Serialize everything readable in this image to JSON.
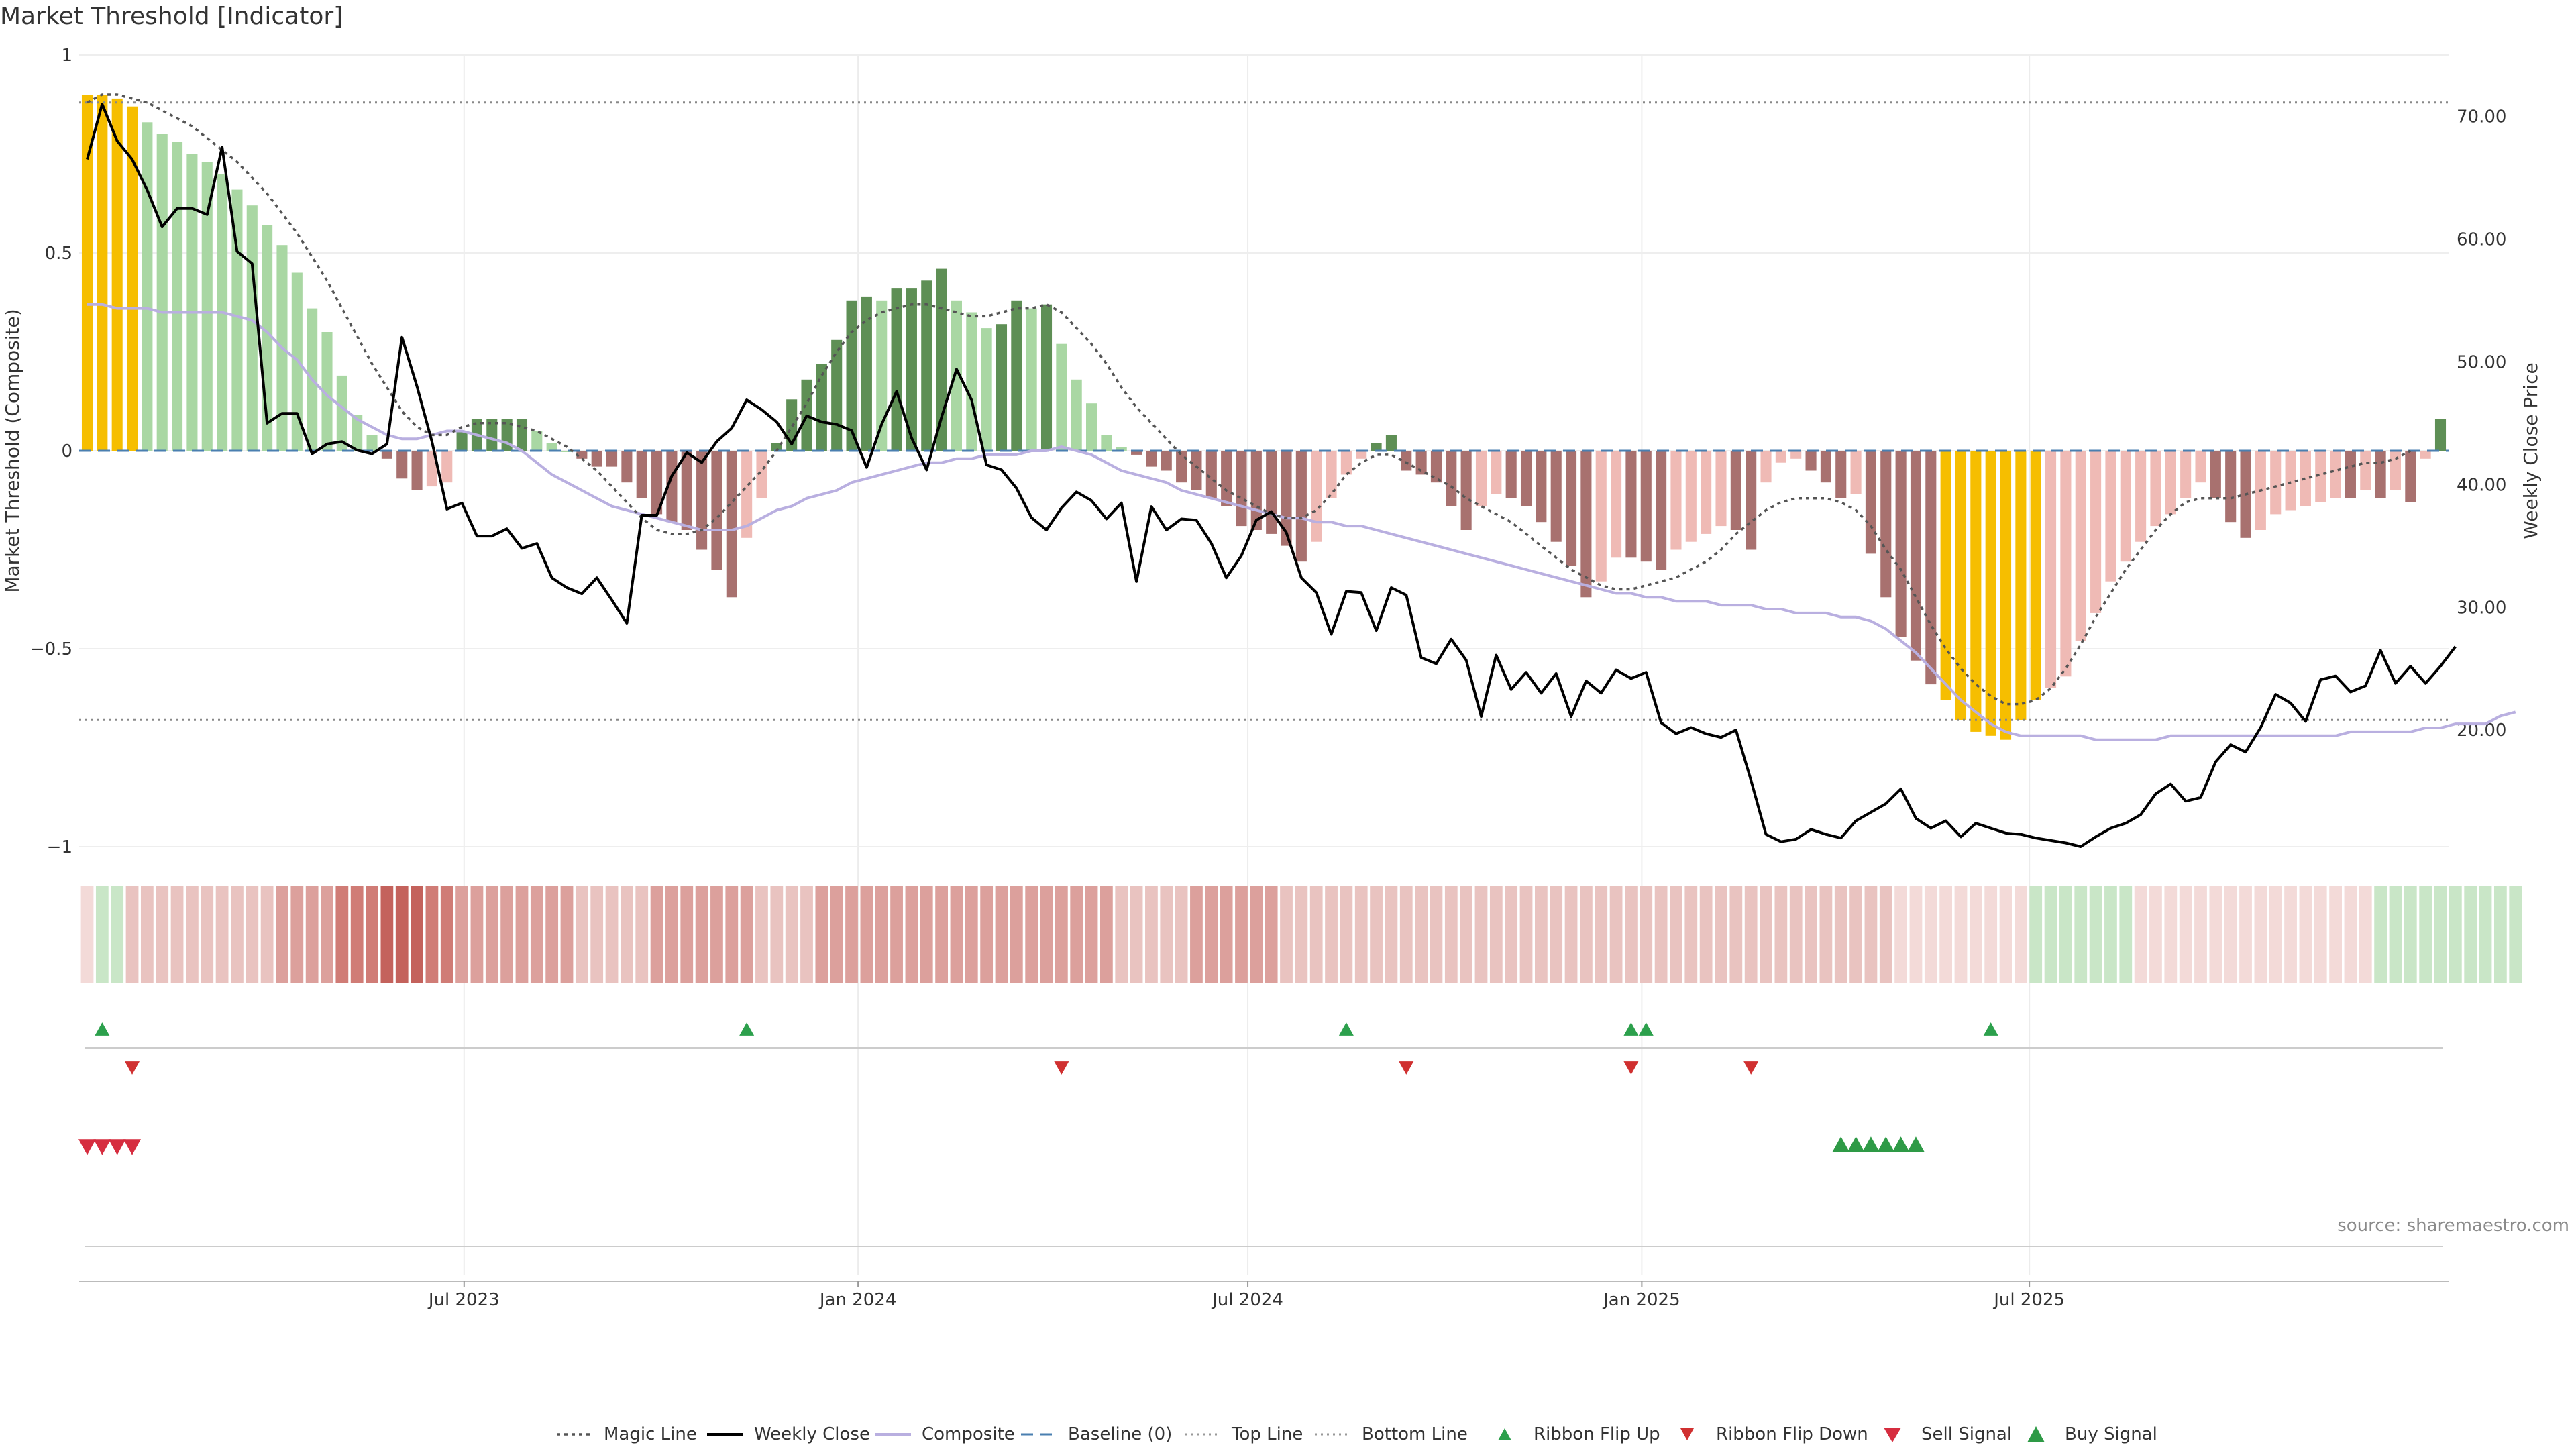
{
  "title": "Market Threshold [Indicator]",
  "source_note": "source: sharemaestro.com",
  "colors": {
    "extreme": "#f6be00",
    "green_dark": "#5e8f55",
    "green_light": "#a9d7a3",
    "red_dark": "#a8716f",
    "red_light": "#efbab5",
    "close": "#000000",
    "composite": "#b9afe0",
    "magic": "#555555",
    "baseline": "#4a7fb0",
    "flip_up": "#2ca04c",
    "flip_down": "#d03030",
    "sell": "#d62d3f",
    "buy": "#2e9a46"
  },
  "chart_data": {
    "type": "bar",
    "title": "Market Threshold [Indicator]",
    "ylabel_left": "Market Threshold (Composite)",
    "ylabel_right": "Weekly Close Price",
    "ylim_left": [
      -1,
      1
    ],
    "yticks_left": [
      "1",
      "0.5",
      "0",
      "−0.5",
      "−1"
    ],
    "ylim_right": [
      10.5,
      75
    ],
    "yticks_right": [
      "70.00",
      "60.00",
      "50.00",
      "40.00",
      "30.00",
      "20.00"
    ],
    "x_start": "2023-01-06",
    "x_step_days": 7,
    "xticks": [
      {
        "label": "Jul 2023",
        "date": "2023-07-01"
      },
      {
        "label": "Jan 2024",
        "date": "2024-01-01"
      },
      {
        "label": "Jul 2024",
        "date": "2024-07-01"
      },
      {
        "label": "Jan 2025",
        "date": "2025-01-01"
      },
      {
        "label": "Jul 2025",
        "date": "2025-07-01"
      }
    ],
    "top_line": 0.88,
    "bottom_line": -0.68,
    "threshold": [
      0.9,
      0.9,
      0.89,
      0.87,
      0.83,
      0.8,
      0.78,
      0.75,
      0.73,
      0.7,
      0.66,
      0.62,
      0.57,
      0.52,
      0.45,
      0.36,
      0.3,
      0.19,
      0.09,
      0.04,
      -0.02,
      -0.07,
      -0.1,
      -0.09,
      -0.08,
      0.05,
      0.08,
      0.08,
      0.08,
      0.08,
      0.05,
      0.02,
      0,
      -0.02,
      -0.04,
      -0.04,
      -0.08,
      -0.12,
      -0.16,
      -0.18,
      -0.2,
      -0.25,
      -0.3,
      -0.37,
      -0.22,
      -0.12,
      0.02,
      0.13,
      0.18,
      0.22,
      0.28,
      0.38,
      0.39,
      0.38,
      0.41,
      0.41,
      0.43,
      0.46,
      0.38,
      0.35,
      0.31,
      0.32,
      0.38,
      0.36,
      0.37,
      0.27,
      0.18,
      0.12,
      0.04,
      0.01,
      -0.01,
      -0.04,
      -0.05,
      -0.08,
      -0.1,
      -0.12,
      -0.14,
      -0.19,
      -0.2,
      -0.21,
      -0.24,
      -0.28,
      -0.23,
      -0.12,
      -0.06,
      -0.02,
      0.02,
      0.04,
      -0.05,
      -0.06,
      -0.08,
      -0.14,
      -0.2,
      -0.14,
      -0.11,
      -0.12,
      -0.14,
      -0.18,
      -0.23,
      -0.29,
      -0.37,
      -0.33,
      -0.27,
      -0.27,
      -0.28,
      -0.3,
      -0.25,
      -0.23,
      -0.21,
      -0.19,
      -0.2,
      -0.25,
      -0.08,
      -0.03,
      -0.02,
      -0.05,
      -0.08,
      -0.12,
      -0.11,
      -0.26,
      -0.37,
      -0.47,
      -0.53,
      -0.59,
      -0.63,
      -0.68,
      -0.71,
      -0.72,
      -0.73,
      -0.68,
      -0.63,
      -0.6,
      -0.57,
      -0.48,
      -0.41,
      -0.33,
      -0.28,
      -0.23,
      -0.19,
      -0.16,
      -0.12,
      -0.08,
      -0.12,
      -0.18,
      -0.22,
      -0.2,
      -0.16,
      -0.15,
      -0.14,
      -0.13,
      -0.12,
      -0.12,
      -0.1,
      -0.12,
      -0.1,
      -0.13,
      -0.02,
      0.08
    ],
    "composite": [
      0.37,
      0.37,
      0.36,
      0.36,
      0.36,
      0.35,
      0.35,
      0.35,
      0.35,
      0.35,
      0.34,
      0.33,
      0.3,
      0.26,
      0.23,
      0.18,
      0.14,
      0.11,
      0.08,
      0.06,
      0.04,
      0.03,
      0.03,
      0.04,
      0.05,
      0.05,
      0.04,
      0.03,
      0.02,
      0,
      -0.03,
      -0.06,
      -0.08,
      -0.1,
      -0.12,
      -0.14,
      -0.15,
      -0.16,
      -0.17,
      -0.18,
      -0.19,
      -0.2,
      -0.2,
      -0.2,
      -0.19,
      -0.17,
      -0.15,
      -0.14,
      -0.12,
      -0.11,
      -0.1,
      -0.08,
      -0.07,
      -0.06,
      -0.05,
      -0.04,
      -0.03,
      -0.03,
      -0.02,
      -0.02,
      -0.01,
      -0.01,
      -0.01,
      0,
      0,
      0.01,
      0,
      -0.01,
      -0.03,
      -0.05,
      -0.06,
      -0.07,
      -0.08,
      -0.1,
      -0.11,
      -0.12,
      -0.13,
      -0.14,
      -0.15,
      -0.16,
      -0.17,
      -0.17,
      -0.18,
      -0.18,
      -0.19,
      -0.19,
      -0.2,
      -0.21,
      -0.22,
      -0.23,
      -0.24,
      -0.25,
      -0.26,
      -0.27,
      -0.28,
      -0.29,
      -0.3,
      -0.31,
      -0.32,
      -0.33,
      -0.34,
      -0.35,
      -0.36,
      -0.36,
      -0.37,
      -0.37,
      -0.38,
      -0.38,
      -0.38,
      -0.39,
      -0.39,
      -0.39,
      -0.4,
      -0.4,
      -0.41,
      -0.41,
      -0.41,
      -0.42,
      -0.42,
      -0.43,
      -0.45,
      -0.48,
      -0.51,
      -0.55,
      -0.59,
      -0.63,
      -0.66,
      -0.69,
      -0.71,
      -0.72,
      -0.72,
      -0.72,
      -0.72,
      -0.72,
      -0.73,
      -0.73,
      -0.73,
      -0.73,
      -0.73,
      -0.72,
      -0.72,
      -0.72,
      -0.72,
      -0.72,
      -0.72,
      -0.72,
      -0.72,
      -0.72,
      -0.72,
      -0.72,
      -0.72,
      -0.71,
      -0.71,
      -0.71,
      -0.71,
      -0.71,
      -0.7,
      -0.7,
      -0.69,
      -0.69,
      -0.69,
      -0.67,
      -0.66
    ],
    "magic_line": [
      0.88,
      0.9,
      0.9,
      0.89,
      0.88,
      0.86,
      0.84,
      0.82,
      0.79,
      0.76,
      0.73,
      0.69,
      0.65,
      0.6,
      0.55,
      0.49,
      0.43,
      0.36,
      0.29,
      0.22,
      0.16,
      0.1,
      0.06,
      0.04,
      0.04,
      0.06,
      0.07,
      0.07,
      0.07,
      0.06,
      0.05,
      0.03,
      0.01,
      -0.02,
      -0.05,
      -0.09,
      -0.13,
      -0.17,
      -0.2,
      -0.21,
      -0.21,
      -0.2,
      -0.17,
      -0.13,
      -0.09,
      -0.05,
      0,
      0.06,
      0.12,
      0.19,
      0.25,
      0.3,
      0.33,
      0.35,
      0.36,
      0.37,
      0.37,
      0.36,
      0.35,
      0.34,
      0.34,
      0.35,
      0.36,
      0.36,
      0.37,
      0.35,
      0.31,
      0.27,
      0.22,
      0.16,
      0.11,
      0.07,
      0.03,
      -0.01,
      -0.04,
      -0.07,
      -0.1,
      -0.12,
      -0.14,
      -0.16,
      -0.17,
      -0.17,
      -0.15,
      -0.11,
      -0.06,
      -0.03,
      -0.01,
      -0.01,
      -0.03,
      -0.05,
      -0.07,
      -0.09,
      -0.12,
      -0.14,
      -0.16,
      -0.18,
      -0.21,
      -0.24,
      -0.27,
      -0.3,
      -0.32,
      -0.34,
      -0.35,
      -0.35,
      -0.34,
      -0.33,
      -0.32,
      -0.3,
      -0.28,
      -0.25,
      -0.21,
      -0.18,
      -0.15,
      -0.13,
      -0.12,
      -0.12,
      -0.12,
      -0.13,
      -0.15,
      -0.19,
      -0.25,
      -0.3,
      -0.37,
      -0.44,
      -0.5,
      -0.55,
      -0.59,
      -0.62,
      -0.64,
      -0.64,
      -0.63,
      -0.6,
      -0.55,
      -0.49,
      -0.42,
      -0.36,
      -0.3,
      -0.25,
      -0.2,
      -0.16,
      -0.13,
      -0.12,
      -0.12,
      -0.12,
      -0.11,
      -0.1,
      -0.09,
      -0.08,
      -0.07,
      -0.06,
      -0.05,
      -0.04,
      -0.03,
      -0.03,
      -0.02,
      0
    ],
    "weekly_close": [
      66.5,
      71,
      68,
      66.5,
      64,
      61,
      62.5,
      62.5,
      62,
      67.5,
      59,
      58,
      45,
      45.8,
      45.8,
      42.5,
      43.3,
      43.5,
      42.8,
      42.5,
      43.3,
      52,
      48,
      43.5,
      38,
      38.5,
      35.8,
      35.8,
      36.4,
      34.8,
      35.2,
      32.4,
      31.6,
      31.1,
      32.4,
      30.6,
      28.7,
      37.5,
      37.5,
      40.7,
      42.6,
      41.8,
      43.5,
      44.6,
      46.9,
      46.1,
      45.1,
      43.3,
      45.6,
      45.1,
      44.9,
      44.4,
      41.4,
      44.9,
      47.6,
      43.8,
      41.2,
      45.5,
      49.4,
      46.9,
      41.6,
      41.2,
      39.7,
      37.3,
      36.3,
      38.1,
      39.4,
      38.7,
      37.2,
      38.5,
      32.1,
      38.2,
      36.3,
      37.2,
      37.1,
      35.2,
      32.4,
      34.2,
      37.1,
      37.8,
      36.1,
      32.4,
      31.2,
      27.8,
      31.3,
      31.2,
      28.1,
      31.6,
      31,
      25.9,
      25.4,
      27.4,
      25.7,
      21.1,
      26.1,
      23.3,
      24.7,
      23,
      24.6,
      21.1,
      24,
      23,
      24.9,
      24.2,
      24.7,
      20.6,
      19.7,
      20.2,
      19.7,
      19.4,
      20,
      15.9,
      11.5,
      10.9,
      11.1,
      11.9,
      11.5,
      11.2,
      12.6,
      13.3,
      14,
      15.2,
      12.8,
      12,
      12.6,
      11.3,
      12.4,
      12,
      11.6,
      11.5,
      11.2,
      11,
      10.8,
      10.5,
      11.3,
      12,
      12.4,
      13.1,
      14.8,
      15.6,
      14.2,
      14.5,
      17.4,
      18.8,
      18.2,
      20.2,
      22.9,
      22.2,
      20.7,
      24.1,
      24.4,
      23.1,
      23.6,
      26.5,
      23.8,
      25.2,
      23.8,
      25.2,
      26.8
    ],
    "ribbon": [
      -1,
      1,
      1,
      -2,
      -2,
      -2,
      -2,
      -2,
      -2,
      -2,
      -2,
      -2,
      -2,
      -3,
      -3,
      -3,
      -3,
      -4,
      -4,
      -4,
      -5,
      -5,
      -5,
      -4,
      -4,
      -3,
      -3,
      -3,
      -3,
      -3,
      -3,
      -3,
      -3,
      -2,
      -2,
      -2,
      -2,
      -2,
      -3,
      -3,
      -3,
      -3,
      -3,
      -3,
      -3,
      -2,
      -2,
      -2,
      -2,
      -3,
      -3,
      -3,
      -3,
      -3,
      -3,
      -3,
      -3,
      -3,
      -3,
      -3,
      -3,
      -3,
      -3,
      -3,
      -3,
      -3,
      -3,
      -3,
      -3,
      -2,
      -2,
      -2,
      -2,
      -2,
      -3,
      -3,
      -3,
      -3,
      -3,
      -3,
      -2,
      -2,
      -2,
      -2,
      -2,
      -2,
      -2,
      -2,
      -2,
      -2,
      -2,
      -2,
      -2,
      -2,
      -2,
      -2,
      -2,
      -2,
      -2,
      -2,
      -2,
      -2,
      -2,
      -2,
      -2,
      -2,
      -2,
      -2,
      -2,
      -2,
      -2,
      -2,
      -2,
      -2,
      -2,
      -2,
      -2,
      -2,
      -2,
      -2,
      -2,
      -1,
      -1,
      -1,
      -1,
      -1,
      -1,
      -1,
      -1,
      -1,
      1,
      1,
      1,
      1,
      1,
      1,
      1,
      -1,
      -1,
      -1,
      -1,
      -1,
      -1,
      -1,
      -1,
      -1,
      -1,
      -1,
      -1,
      -1,
      -1,
      -1,
      -1,
      1,
      1,
      1,
      1,
      1,
      1,
      1,
      1,
      1,
      1
    ],
    "ribbon_flip_up": [
      "2023-01-13",
      "2023-11-10",
      "2024-08-16",
      "2024-12-27",
      "2025-01-03",
      "2025-06-13"
    ],
    "ribbon_flip_down": [
      "2023-01-27",
      "2024-04-05",
      "2024-09-13",
      "2024-12-27",
      "2025-02-21"
    ],
    "sell_signal": [
      "2023-01-06",
      "2023-01-13",
      "2023-01-20",
      "2023-01-27"
    ],
    "buy_signal": [
      "2025-04-04",
      "2025-04-11",
      "2025-04-18",
      "2025-04-25",
      "2025-05-02",
      "2025-05-09"
    ]
  },
  "legend": [
    {
      "key": "magic",
      "label": "Magic Line"
    },
    {
      "key": "close",
      "label": "Weekly Close"
    },
    {
      "key": "composite",
      "label": "Composite"
    },
    {
      "key": "baseline",
      "label": "Baseline (0)"
    },
    {
      "key": "top",
      "label": "Top Line"
    },
    {
      "key": "bottom",
      "label": "Bottom Line"
    },
    {
      "key": "flip_up",
      "label": "Ribbon Flip Up"
    },
    {
      "key": "flip_down",
      "label": "Ribbon Flip Down"
    },
    {
      "key": "sell",
      "label": "Sell Signal"
    },
    {
      "key": "buy",
      "label": "Buy Signal"
    }
  ]
}
